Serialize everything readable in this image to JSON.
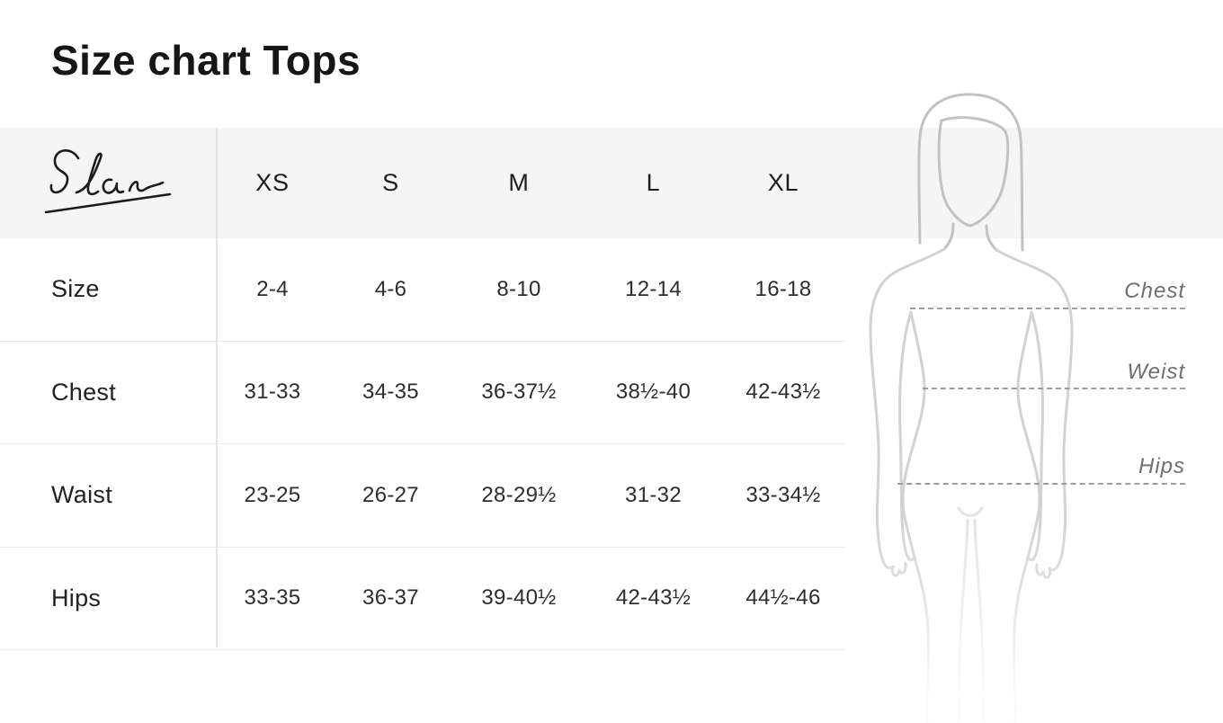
{
  "page": {
    "title": "Size chart Tops"
  },
  "brand": {
    "logo_text": "Elan"
  },
  "chart_data": {
    "type": "table",
    "title": "Size chart Tops",
    "brand": "Elan",
    "size_headers": [
      "XS",
      "S",
      "M",
      "L",
      "XL"
    ],
    "rows": [
      {
        "label": "Size",
        "values": [
          "2-4",
          "4-6",
          "8-10",
          "12-14",
          "16-18"
        ]
      },
      {
        "label": "Chest",
        "values": [
          "31-33",
          "34-35",
          "36-37½",
          "38½-40",
          "42-43½"
        ]
      },
      {
        "label": "Waist",
        "values": [
          "23-25",
          "26-27",
          "28-29½",
          "31-32",
          "33-34½"
        ]
      },
      {
        "label": "Hips",
        "values": [
          "33-35",
          "36-37",
          "39-40½",
          "42-43½",
          "44½-46"
        ]
      }
    ]
  },
  "figure": {
    "measure_labels": [
      {
        "label": "Chest"
      },
      {
        "label": "Weist"
      },
      {
        "label": "Hips"
      }
    ]
  },
  "colors": {
    "header_band": "#f5f5f5",
    "table_border": "#e9e9e9",
    "dash_line": "#9c9c9c",
    "silhouette_dark": "#c2c2c2",
    "silhouette_light": "#e4e4e4",
    "text": "#1a1a1a"
  }
}
